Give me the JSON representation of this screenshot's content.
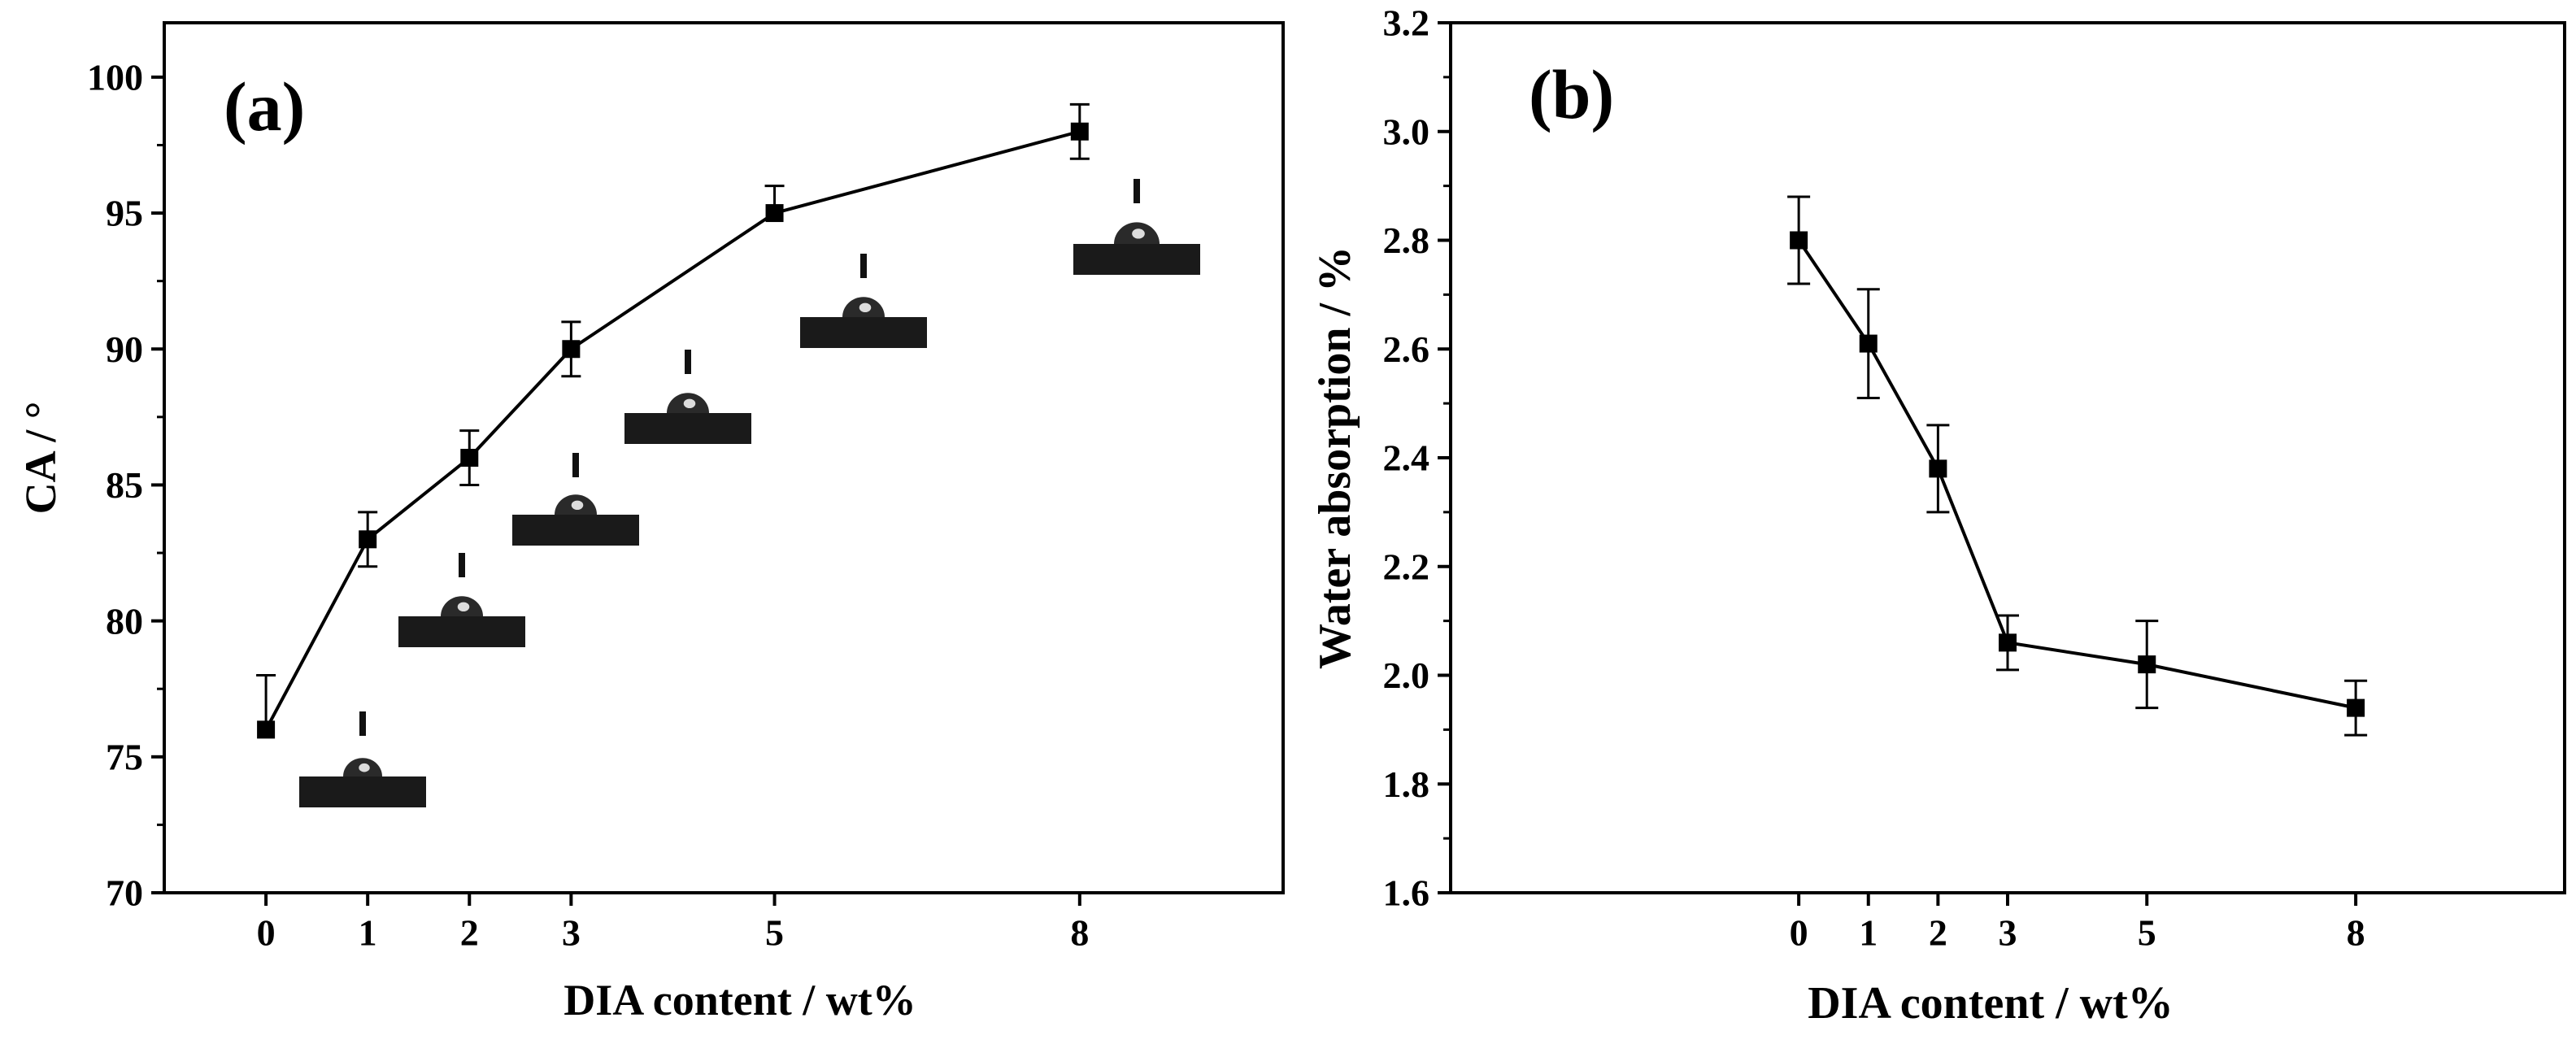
{
  "chart_data": [
    {
      "type": "line",
      "panel_label": "(a)",
      "xlabel": "DIA content / wt%",
      "ylabel": "CA / °",
      "x": [
        0,
        1,
        2,
        3,
        5,
        8
      ],
      "x_tick_labels": [
        "0",
        "1",
        "2",
        "3",
        "5",
        "8"
      ],
      "xlim": [
        -1,
        10
      ],
      "ylim": [
        70,
        102
      ],
      "y_ticks": [
        70,
        75,
        80,
        85,
        90,
        95,
        100
      ],
      "y_tick_labels": [
        "70",
        "75",
        "80",
        "85",
        "90",
        "95",
        "100"
      ],
      "series": [
        {
          "name": "CA",
          "values": [
            76,
            83,
            86,
            90,
            95,
            98
          ],
          "error_upper": [
            2,
            1,
            1,
            1,
            1,
            1
          ],
          "error_lower": [
            0,
            1,
            1,
            1,
            0,
            1
          ]
        }
      ],
      "droplet_images_count": 6,
      "grid": false
    },
    {
      "type": "line",
      "panel_label": "(b)",
      "xlabel": "DIA content / wt%",
      "ylabel": "Water absorption / %",
      "x": [
        0,
        1,
        2,
        3,
        5,
        8
      ],
      "x_tick_labels": [
        "0",
        "1",
        "2",
        "3",
        "5",
        "8"
      ],
      "xlim": [
        -5,
        11
      ],
      "ylim": [
        1.6,
        3.2
      ],
      "y_ticks": [
        1.6,
        1.8,
        2.0,
        2.2,
        2.4,
        2.6,
        2.8,
        3.0,
        3.2
      ],
      "y_tick_labels": [
        "1.6",
        "1.8",
        "2.0",
        "2.2",
        "2.4",
        "2.6",
        "2.8",
        "3.0",
        "3.2"
      ],
      "series": [
        {
          "name": "Water absorption",
          "values": [
            2.8,
            2.61,
            2.38,
            2.06,
            2.02,
            1.94
          ],
          "error": [
            0.08,
            0.1,
            0.08,
            0.05,
            0.08,
            0.05
          ]
        }
      ],
      "grid": false
    }
  ],
  "colors": {
    "line": "#000000",
    "marker": "#000000",
    "background": "#ffffff",
    "droplet_substrate": "#1a1a1a"
  }
}
